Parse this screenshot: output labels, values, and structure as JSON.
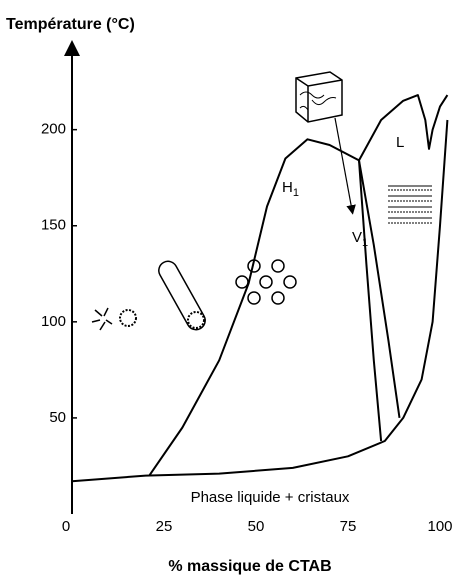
{
  "chart_data": {
    "type": "line",
    "title": "Température (°C)",
    "x_label": "% massique de CTAB",
    "xlim": [
      0,
      103
    ],
    "ylim": [
      0,
      230
    ],
    "xticks": [
      0,
      25,
      50,
      75,
      100
    ],
    "yticks": [
      50,
      100,
      150,
      200
    ],
    "grid": false,
    "series": [
      {
        "color": "#000000",
        "x": [
          0,
          20,
          40,
          60,
          75,
          85,
          90,
          95,
          98,
          100,
          102
        ],
        "values": [
          17,
          20,
          21,
          24,
          30,
          38,
          50,
          70,
          100,
          150,
          205
        ]
      },
      {
        "color": "#000000",
        "x": [
          21,
          30,
          40,
          48,
          53,
          58,
          64,
          70,
          78
        ],
        "values": [
          20,
          45,
          80,
          120,
          160,
          185,
          195,
          192,
          184
        ]
      },
      {
        "color": "#000000",
        "x": [
          78,
          80,
          82,
          84
        ],
        "values": [
          184,
          130,
          80,
          38
        ]
      },
      {
        "color": "#000000",
        "x": [
          78,
          82,
          86,
          89
        ],
        "values": [
          184,
          140,
          90,
          50
        ]
      },
      {
        "color": "#000000",
        "x": [
          78,
          84,
          90,
          94,
          96,
          97,
          98,
          100,
          102
        ],
        "values": [
          184,
          205,
          215,
          218,
          205,
          190,
          200,
          212,
          218
        ]
      }
    ],
    "annotations": [
      {
        "text": "H",
        "subscript": "1"
      },
      {
        "text": "V",
        "subscript": "1"
      },
      {
        "text": "L"
      },
      {
        "text": "Phase liquide + cristaux"
      }
    ]
  }
}
